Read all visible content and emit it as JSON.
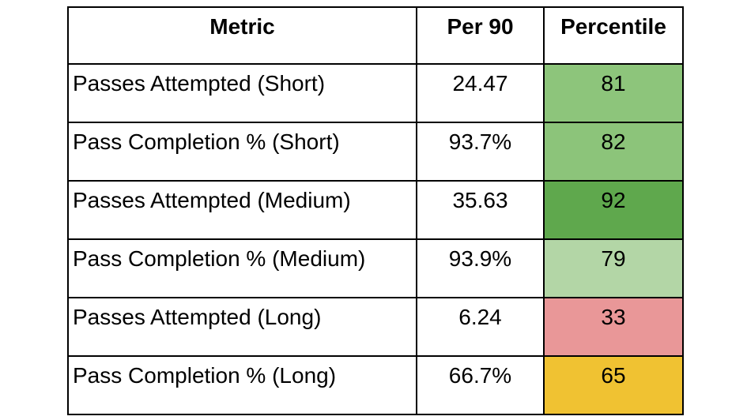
{
  "chart_data": {
    "type": "table",
    "columns": [
      "Metric",
      "Per 90",
      "Percentile"
    ],
    "rows": [
      [
        "Passes Attempted (Short)",
        "24.47",
        "81"
      ],
      [
        "Pass Completion % (Short)",
        "93.7%",
        "82"
      ],
      [
        "Passes Attempted (Medium)",
        "35.63",
        "92"
      ],
      [
        "Pass Completion % (Medium)",
        "93.9%",
        "79"
      ],
      [
        "Passes Attempted (Long)",
        "6.24",
        "33"
      ],
      [
        "Pass Completion % (Long)",
        "66.7%",
        "65"
      ]
    ],
    "percentile_cell_colors": [
      "#8DC57B",
      "#8CC47A",
      "#5FA84D",
      "#B3D6A6",
      "#E99798",
      "#F0C232"
    ],
    "layout": {
      "border_color": "#000000",
      "background": "#FFFFFF",
      "header_bold": true,
      "grid": "all-borders"
    }
  }
}
